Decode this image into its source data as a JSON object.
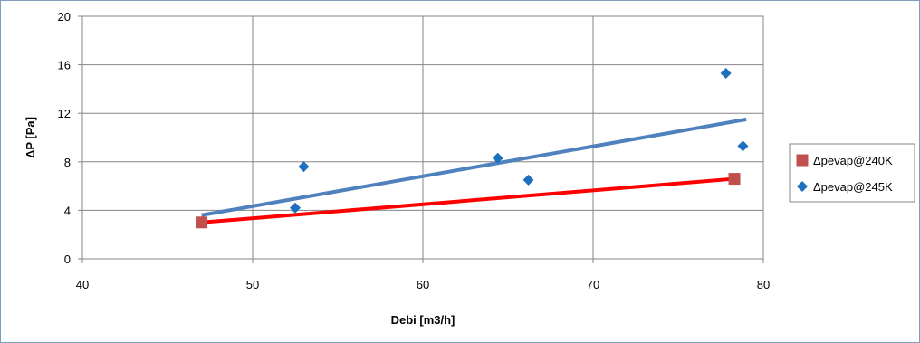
{
  "chart_data": {
    "type": "scatter",
    "title": "",
    "xlabel": "Debi [m3/h]",
    "ylabel": "ΔP [Pa]",
    "xlim": [
      40,
      80
    ],
    "ylim": [
      0,
      20
    ],
    "x_ticks": [
      "40",
      "50",
      "60",
      "70",
      "80"
    ],
    "y_ticks": [
      "0",
      "4",
      "8",
      "12",
      "16",
      "20"
    ],
    "grid": true,
    "legend_position": "right",
    "series": [
      {
        "name": "Δpevap@240K",
        "marker": "square",
        "color": "#c0504d",
        "points": [
          [
            47,
            3.0
          ],
          [
            78.3,
            6.6
          ]
        ],
        "trendline": {
          "color": "#ff0000",
          "from": [
            47,
            3.0
          ],
          "to": [
            78.3,
            6.6
          ]
        }
      },
      {
        "name": "Δpevap@245K",
        "marker": "diamond",
        "color": "#1f6fbf",
        "points": [
          [
            52.5,
            4.2
          ],
          [
            53,
            7.6
          ],
          [
            64.4,
            8.3
          ],
          [
            66.2,
            6.5
          ],
          [
            77.8,
            15.3
          ],
          [
            78.8,
            9.3
          ]
        ],
        "trendline": {
          "color": "#4f81bd",
          "from": [
            47,
            3.6
          ],
          "to": [
            79,
            11.5
          ]
        }
      }
    ]
  }
}
